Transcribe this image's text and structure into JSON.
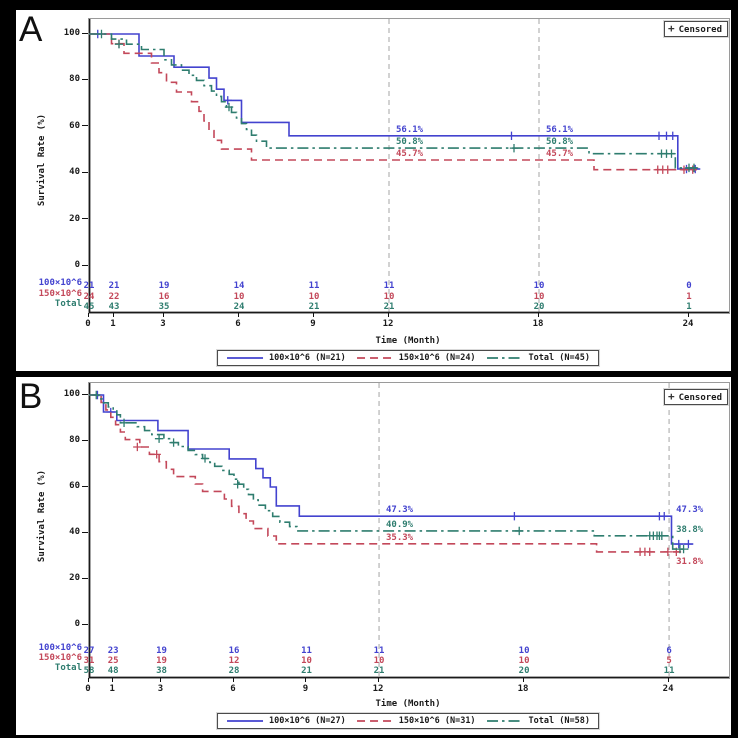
{
  "censored_legend": {
    "symbol": "+",
    "label": "Censored"
  },
  "colors": {
    "blue": "#4343CF",
    "red": "#C3485A",
    "green": "#2F7D6F",
    "ref_line": "#ADADAD",
    "axis": "#1a1a1a"
  },
  "axis": {
    "y_label": "Survival Rate (%)",
    "x_label": "Time (Month)",
    "y_ticks": [
      100,
      80,
      60,
      40,
      20,
      0
    ],
    "x_ticks": [
      0,
      1,
      3,
      6,
      9,
      12,
      18,
      24
    ],
    "ylim": [
      0,
      100
    ],
    "xlim": [
      0,
      25
    ]
  },
  "chart_data": [
    {
      "panel": "A",
      "type": "line",
      "subtype": "kaplan-meier-step",
      "ref_lines": [
        12,
        18
      ],
      "series": [
        {
          "name": "100×10^6 (N=21)",
          "color_key": "blue",
          "dash": "solid",
          "points": [
            [
              0,
              100
            ],
            [
              2.0,
              90.5
            ],
            [
              3.4,
              85.7
            ],
            [
              4.8,
              81.0
            ],
            [
              5.1,
              76.2
            ],
            [
              5.4,
              71.4
            ],
            [
              6.1,
              61.9
            ],
            [
              8.0,
              56.1
            ],
            [
              23.55,
              41.8
            ]
          ],
          "end": 24.45,
          "censors": [
            [
              0.35,
              100
            ],
            [
              5.55,
              71.4
            ],
            [
              16.9,
              56.1
            ],
            [
              22.8,
              56.1
            ],
            [
              23.1,
              56.1
            ],
            [
              23.35,
              56.1
            ],
            [
              23.9,
              41.8
            ],
            [
              24.25,
              41.8
            ]
          ]
        },
        {
          "name": "150×10^6 (N=24)",
          "color_key": "red",
          "dash": "dash",
          "points": [
            [
              0,
              100
            ],
            [
              0.9,
              95.8
            ],
            [
              1.4,
              91.7
            ],
            [
              2.5,
              87.5
            ],
            [
              2.8,
              83.3
            ],
            [
              3.1,
              79.2
            ],
            [
              3.5,
              75.0
            ],
            [
              4.1,
              70.8
            ],
            [
              4.4,
              66.7
            ],
            [
              4.6,
              62.5
            ],
            [
              4.8,
              58.3
            ],
            [
              5.0,
              54.2
            ],
            [
              5.3,
              50.4
            ],
            [
              6.5,
              45.7
            ],
            [
              20.2,
              41.5
            ]
          ],
          "end": 24.3,
          "censors": [
            [
              1.2,
              95.8
            ],
            [
              22.75,
              41.5
            ],
            [
              22.95,
              41.5
            ],
            [
              23.15,
              41.5
            ],
            [
              23.8,
              41.5
            ],
            [
              24.15,
              41.5
            ]
          ]
        },
        {
          "name": "Total (N=45)",
          "color_key": "green",
          "dash": "dashdot",
          "points": [
            [
              0,
              100
            ],
            [
              0.9,
              97.8
            ],
            [
              1.5,
              95.6
            ],
            [
              2.1,
              93.3
            ],
            [
              3.0,
              88.9
            ],
            [
              3.3,
              86.7
            ],
            [
              3.7,
              84.4
            ],
            [
              4.0,
              82.2
            ],
            [
              4.3,
              80.0
            ],
            [
              4.6,
              77.7
            ],
            [
              4.9,
              75.4
            ],
            [
              5.1,
              73.1
            ],
            [
              5.3,
              70.8
            ],
            [
              5.5,
              68.5
            ],
            [
              5.7,
              66.2
            ],
            [
              5.9,
              63.8
            ],
            [
              6.1,
              61.4
            ],
            [
              6.3,
              58.9
            ],
            [
              6.5,
              56.4
            ],
            [
              6.7,
              53.8
            ],
            [
              7.1,
              50.8
            ],
            [
              20.0,
              48.4
            ],
            [
              23.45,
              42.3
            ]
          ],
          "end": 24.35,
          "censors": [
            [
              0.5,
              100
            ],
            [
              1.2,
              95.6
            ],
            [
              5.6,
              68.5
            ],
            [
              17.0,
              50.8
            ],
            [
              22.9,
              48.4
            ],
            [
              23.1,
              48.4
            ],
            [
              23.3,
              48.4
            ],
            [
              24.0,
              42.3
            ],
            [
              24.2,
              42.3
            ]
          ]
        }
      ],
      "annotations": [
        {
          "t": 12,
          "v": 56.1,
          "text": "56.1%",
          "color_key": "blue"
        },
        {
          "t": 12,
          "v": 50.8,
          "text": "50.8%",
          "color_key": "green"
        },
        {
          "t": 12,
          "v": 45.7,
          "text": "45.7%",
          "color_key": "red"
        },
        {
          "t": 18,
          "v": 56.1,
          "text": "56.1%",
          "color_key": "blue"
        },
        {
          "t": 18,
          "v": 50.8,
          "text": "50.8%",
          "color_key": "green"
        },
        {
          "t": 18,
          "v": 45.7,
          "text": "45.7%",
          "color_key": "red"
        }
      ],
      "risk_table": {
        "times": [
          0,
          1,
          3,
          6,
          9,
          12,
          18,
          24
        ],
        "rows": [
          {
            "label": "100×10^6",
            "color_key": "blue",
            "values": [
              21,
              21,
              19,
              14,
              11,
              11,
              10,
              0
            ]
          },
          {
            "label": "150×10^6",
            "color_key": "red",
            "values": [
              24,
              22,
              16,
              10,
              10,
              10,
              10,
              1
            ]
          },
          {
            "label": "Total",
            "color_key": "green",
            "values": [
              45,
              43,
              35,
              24,
              21,
              21,
              20,
              1
            ]
          }
        ]
      }
    },
    {
      "panel": "B",
      "type": "line",
      "subtype": "kaplan-meier-step",
      "ref_lines": [
        12,
        24
      ],
      "series": [
        {
          "name": "100×10^6 (N=27)",
          "color_key": "blue",
          "dash": "solid",
          "points": [
            [
              0,
              100
            ],
            [
              0.6,
              92.6
            ],
            [
              1.15,
              88.9
            ],
            [
              2.85,
              84.5
            ],
            [
              4.1,
              76.5
            ],
            [
              5.8,
              72.2
            ],
            [
              6.9,
              68.0
            ],
            [
              7.2,
              64.0
            ],
            [
              7.5,
              60.0
            ],
            [
              7.75,
              51.8
            ],
            [
              8.7,
              47.3
            ],
            [
              24.1,
              35.2
            ]
          ],
          "end": 25.0,
          "censors": [
            [
              0.35,
              100
            ],
            [
              0.9,
              92.6
            ],
            [
              17.6,
              47.3
            ],
            [
              23.6,
              47.3
            ],
            [
              23.8,
              47.3
            ],
            [
              24.4,
              35.2
            ],
            [
              24.8,
              35.2
            ]
          ]
        },
        {
          "name": "150×10^6 (N=31)",
          "color_key": "red",
          "dash": "dash",
          "points": [
            [
              0,
              100
            ],
            [
              0.5,
              96.8
            ],
            [
              0.7,
              93.5
            ],
            [
              0.9,
              90.3
            ],
            [
              1.1,
              87.1
            ],
            [
              1.3,
              83.9
            ],
            [
              1.5,
              80.6
            ],
            [
              2.1,
              77.4
            ],
            [
              2.5,
              74.2
            ],
            [
              2.9,
              71.0
            ],
            [
              3.2,
              67.7
            ],
            [
              3.5,
              64.5
            ],
            [
              4.4,
              61.3
            ],
            [
              4.7,
              58.1
            ],
            [
              5.6,
              54.8
            ],
            [
              5.9,
              51.6
            ],
            [
              6.2,
              48.4
            ],
            [
              6.5,
              45.2
            ],
            [
              6.8,
              41.9
            ],
            [
              7.4,
              38.7
            ],
            [
              7.75,
              35.3
            ],
            [
              21.0,
              31.8
            ]
          ],
          "end": 24.5,
          "censors": [
            [
              2.0,
              77.4
            ],
            [
              2.8,
              74.2
            ],
            [
              22.8,
              31.8
            ],
            [
              23.0,
              31.8
            ],
            [
              23.2,
              31.8
            ],
            [
              23.95,
              31.8
            ],
            [
              24.3,
              31.8
            ]
          ]
        },
        {
          "name": "Total (N=58)",
          "color_key": "green",
          "dash": "dashdot",
          "points": [
            [
              0,
              100
            ],
            [
              0.4,
              98.3
            ],
            [
              0.6,
              96.6
            ],
            [
              0.8,
              94.8
            ],
            [
              1.0,
              93.1
            ],
            [
              1.15,
              91.4
            ],
            [
              1.3,
              87.9
            ],
            [
              2.0,
              86.2
            ],
            [
              2.3,
              84.5
            ],
            [
              2.6,
              82.8
            ],
            [
              3.1,
              81.0
            ],
            [
              3.4,
              79.3
            ],
            [
              3.7,
              77.6
            ],
            [
              4.1,
              75.9
            ],
            [
              4.4,
              74.1
            ],
            [
              4.7,
              72.4
            ],
            [
              5.0,
              70.7
            ],
            [
              5.2,
              69.0
            ],
            [
              5.5,
              67.2
            ],
            [
              5.8,
              65.5
            ],
            [
              6.0,
              63.4
            ],
            [
              6.2,
              61.2
            ],
            [
              6.4,
              59.0
            ],
            [
              6.6,
              56.7
            ],
            [
              6.8,
              54.4
            ],
            [
              7.0,
              52.1
            ],
            [
              7.3,
              49.7
            ],
            [
              7.6,
              47.2
            ],
            [
              7.9,
              44.7
            ],
            [
              8.3,
              42.8
            ],
            [
              8.6,
              40.9
            ],
            [
              20.9,
              38.8
            ],
            [
              24.15,
              33.0
            ]
          ],
          "end": 24.8,
          "censors": [
            [
              0.3,
              100
            ],
            [
              1.45,
              87.9
            ],
            [
              2.9,
              81.0
            ],
            [
              3.5,
              79.3
            ],
            [
              4.8,
              72.4
            ],
            [
              6.15,
              61.2
            ],
            [
              17.8,
              40.9
            ],
            [
              23.2,
              38.8
            ],
            [
              23.35,
              38.8
            ],
            [
              23.5,
              38.8
            ],
            [
              23.6,
              38.8
            ],
            [
              23.7,
              38.8
            ],
            [
              24.45,
              33.0
            ],
            [
              24.6,
              33.0
            ]
          ]
        }
      ],
      "annotations": [
        {
          "t": 12,
          "v": 47.3,
          "text": "47.3%",
          "color_key": "blue"
        },
        {
          "t": 12,
          "v": 40.9,
          "text": "40.9%",
          "color_key": "green"
        },
        {
          "t": 12,
          "v": 35.3,
          "text": "35.3%",
          "color_key": "red"
        },
        {
          "t": 24,
          "v": 47.3,
          "text": "47.3%",
          "color_key": "blue"
        },
        {
          "t": 24,
          "v": 38.8,
          "text": "38.8%",
          "color_key": "green"
        },
        {
          "t": 24,
          "v": 31.8,
          "text": "31.8%",
          "color_key": "red",
          "dy": 12
        }
      ],
      "risk_table": {
        "times": [
          0,
          1,
          3,
          6,
          9,
          12,
          18,
          24
        ],
        "rows": [
          {
            "label": "100×10^6",
            "color_key": "blue",
            "values": [
              27,
              23,
              19,
              16,
              11,
              11,
              10,
              6
            ]
          },
          {
            "label": "150×10^6",
            "color_key": "red",
            "values": [
              31,
              25,
              19,
              12,
              10,
              10,
              10,
              5
            ]
          },
          {
            "label": "Total",
            "color_key": "green",
            "values": [
              58,
              48,
              38,
              28,
              21,
              21,
              20,
              11
            ]
          }
        ]
      }
    }
  ]
}
